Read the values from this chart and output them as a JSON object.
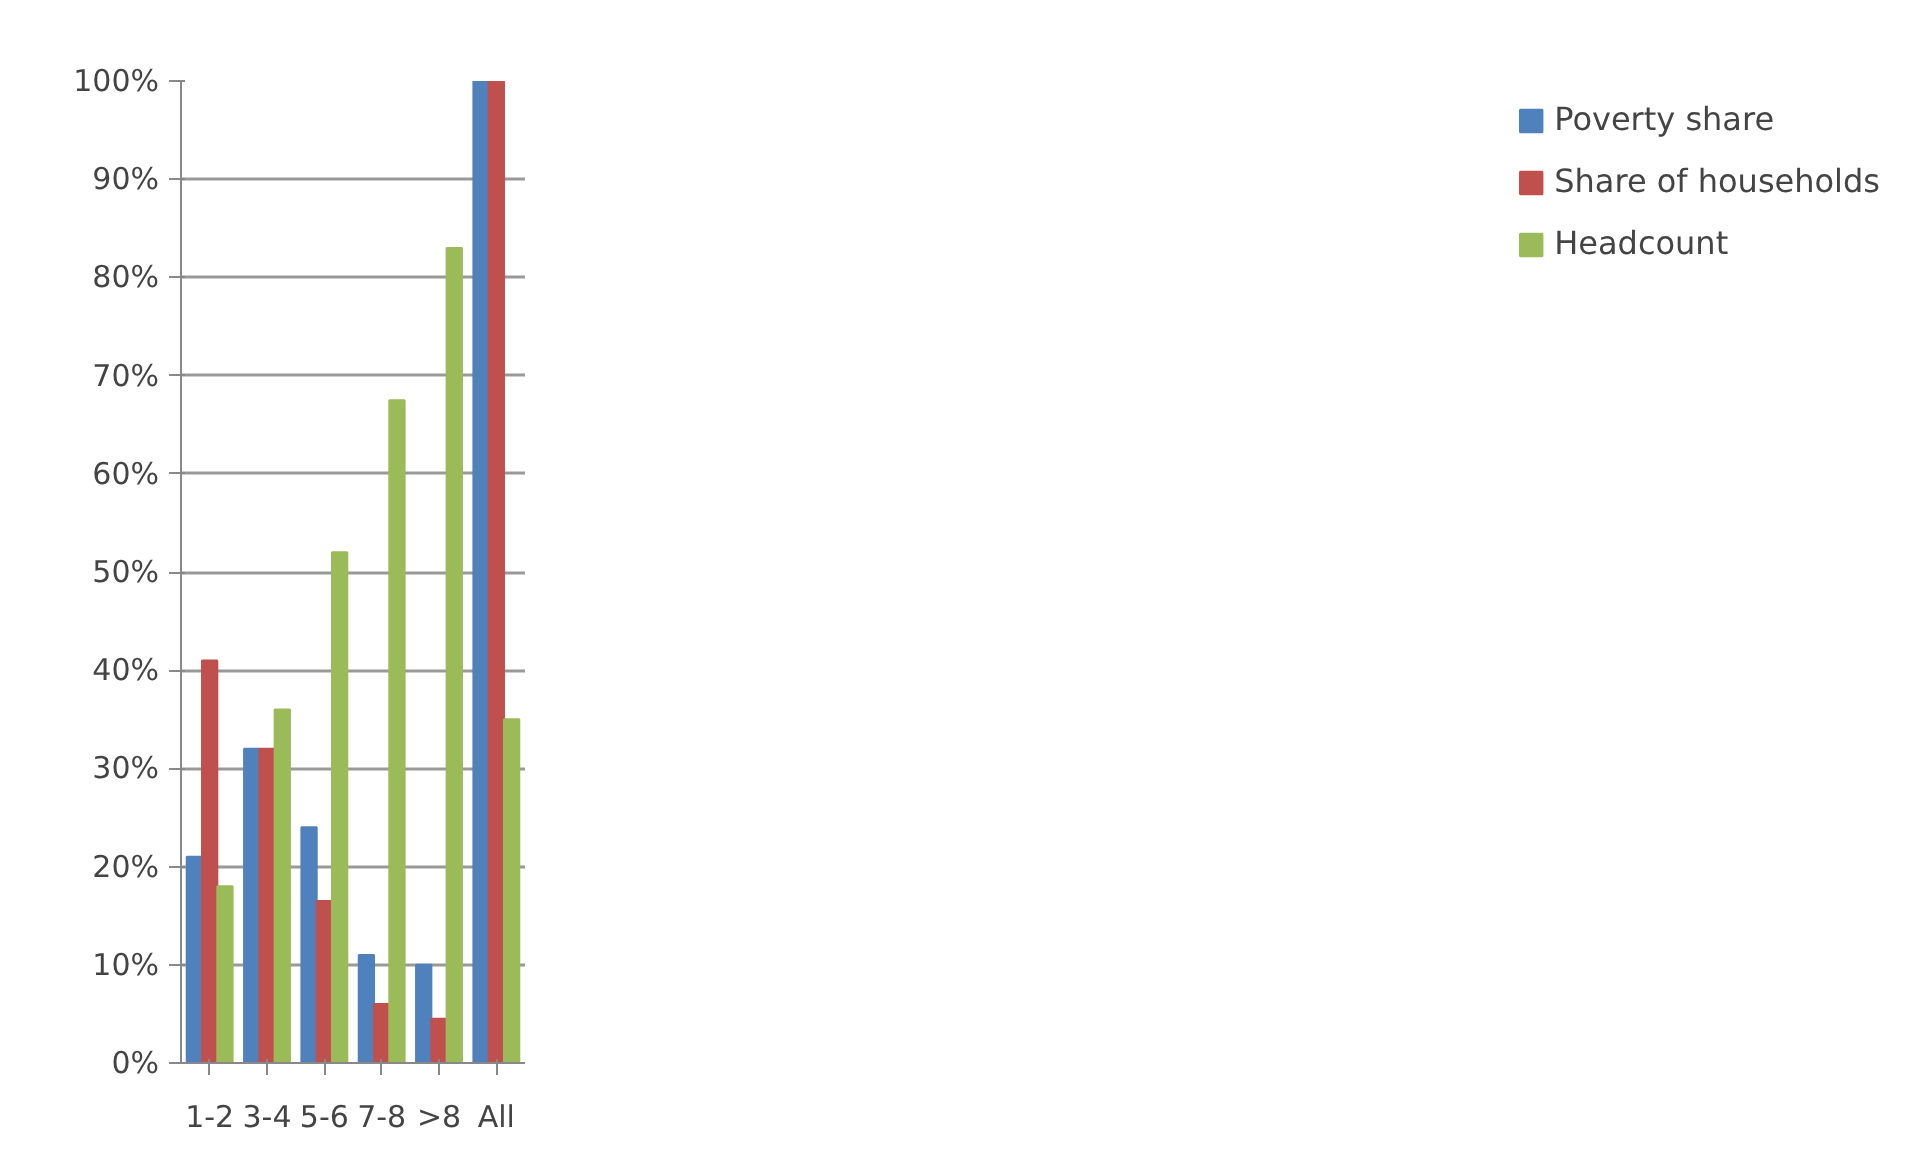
{
  "chart_data": {
    "type": "bar",
    "categories": [
      "1-2",
      "3-4",
      "5-6",
      "7-8",
      ">8",
      "All"
    ],
    "series": [
      {
        "name": "Poverty share",
        "color": "#4f81bd",
        "values": [
          21,
          32,
          24,
          11,
          10,
          100
        ]
      },
      {
        "name": "Share of households",
        "color": "#c0504d",
        "values": [
          41,
          32,
          16.5,
          6,
          4.5,
          100
        ]
      },
      {
        "name": "Headcount",
        "color": "#9bbb59",
        "values": [
          18,
          36,
          52,
          67.5,
          83,
          35
        ]
      }
    ],
    "ylim": [
      0,
      100
    ],
    "yticks": [
      {
        "value": 0,
        "label": "0%"
      },
      {
        "value": 10,
        "label": "10%"
      },
      {
        "value": 20,
        "label": "20%"
      },
      {
        "value": 30,
        "label": "30%"
      },
      {
        "value": 40,
        "label": "40%"
      },
      {
        "value": 50,
        "label": "50%"
      },
      {
        "value": 60,
        "label": "60%"
      },
      {
        "value": 70,
        "label": "70%"
      },
      {
        "value": 80,
        "label": "80%"
      },
      {
        "value": 90,
        "label": "90%"
      },
      {
        "value": 100,
        "label": "100%"
      }
    ],
    "grid": "y",
    "legend": "right"
  }
}
